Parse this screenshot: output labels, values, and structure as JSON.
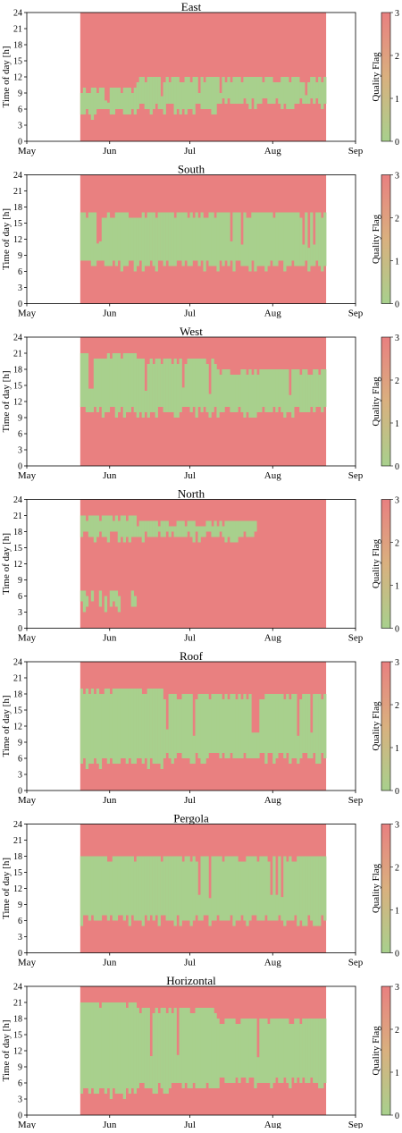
{
  "shared": {
    "ylabel": "Time of day [h]",
    "y_ticks": [
      "0",
      "3",
      "6",
      "9",
      "12",
      "15",
      "18",
      "21",
      "24"
    ],
    "x_ticks": [
      "May",
      "Jun",
      "Jul",
      "Aug",
      "Sep"
    ],
    "colorbar_label": "Quality Flag",
    "colorbar_ticks": [
      "0",
      "1",
      "2",
      "3"
    ],
    "colors": {
      "flag_good": "#a8d08d",
      "flag_bad": "#e98080"
    }
  },
  "chart_data": [
    {
      "type": "heatmap",
      "title": "East",
      "ylabel": "Time of day [h]",
      "xlim": [
        "2021-05-01",
        "2021-09-01"
      ],
      "ylim": [
        0,
        24
      ],
      "data_range": [
        "2021-05-21",
        "2021-08-20"
      ],
      "good_window": [
        {
          "from": "2021-05-21",
          "to": "2021-06-10",
          "hours": [
            5,
            10
          ]
        },
        {
          "from": "2021-06-11",
          "to": "2021-07-10",
          "hours": [
            6,
            12
          ]
        },
        {
          "from": "2021-07-11",
          "to": "2021-08-20",
          "hours": [
            7,
            12
          ]
        }
      ],
      "legend": "colorbar"
    },
    {
      "type": "heatmap",
      "title": "South",
      "ylabel": "Time of day [h]",
      "xlim": [
        "2021-05-01",
        "2021-09-01"
      ],
      "ylim": [
        0,
        24
      ],
      "data_range": [
        "2021-05-21",
        "2021-08-20"
      ],
      "good_window": [
        {
          "from": "2021-05-21",
          "to": "2021-08-20",
          "hours": [
            7,
            17
          ]
        }
      ],
      "legend": "colorbar"
    },
    {
      "type": "heatmap",
      "title": "West",
      "ylabel": "Time of day [h]",
      "xlim": [
        "2021-05-01",
        "2021-09-01"
      ],
      "ylim": [
        0,
        24
      ],
      "data_range": [
        "2021-05-21",
        "2021-08-20"
      ],
      "good_window": [
        {
          "from": "2021-05-21",
          "to": "2021-06-10",
          "hours": [
            10,
            21
          ]
        },
        {
          "from": "2021-06-11",
          "to": "2021-07-10",
          "hours": [
            10,
            20
          ]
        },
        {
          "from": "2021-07-11",
          "to": "2021-08-20",
          "hours": [
            10,
            18
          ]
        }
      ],
      "legend": "colorbar"
    },
    {
      "type": "heatmap",
      "title": "North",
      "ylabel": "Time of day [h]",
      "xlim": [
        "2021-05-01",
        "2021-09-01"
      ],
      "ylim": [
        0,
        24
      ],
      "data_range": [
        "2021-05-21",
        "2021-08-20"
      ],
      "good_window": [
        {
          "from": "2021-05-21",
          "to": "2021-06-10",
          "hours": [
            4,
            7
          ]
        },
        {
          "from": "2021-05-21",
          "to": "2021-06-10",
          "hours": [
            17,
            21
          ]
        },
        {
          "from": "2021-06-11",
          "to": "2021-07-25",
          "hours": [
            17,
            20
          ]
        }
      ],
      "legend": "colorbar"
    },
    {
      "type": "heatmap",
      "title": "Roof",
      "ylabel": "Time of day [h]",
      "xlim": [
        "2021-05-01",
        "2021-09-01"
      ],
      "ylim": [
        0,
        24
      ],
      "data_range": [
        "2021-05-21",
        "2021-08-20"
      ],
      "good_window": [
        {
          "from": "2021-05-21",
          "to": "2021-06-20",
          "hours": [
            5,
            19
          ]
        },
        {
          "from": "2021-06-21",
          "to": "2021-08-20",
          "hours": [
            6,
            18
          ]
        }
      ],
      "legend": "colorbar"
    },
    {
      "type": "heatmap",
      "title": "Pergola",
      "ylabel": "Time of day [h]",
      "xlim": [
        "2021-05-01",
        "2021-09-01"
      ],
      "ylim": [
        0,
        24
      ],
      "data_range": [
        "2021-05-21",
        "2021-08-20"
      ],
      "good_window": [
        {
          "from": "2021-05-21",
          "to": "2021-08-20",
          "hours": [
            6,
            18
          ]
        }
      ],
      "legend": "colorbar"
    },
    {
      "type": "heatmap",
      "title": "Horizontal",
      "ylabel": "Time of day [h]",
      "xlim": [
        "2021-05-01",
        "2021-09-01"
      ],
      "ylim": [
        0,
        24
      ],
      "data_range": [
        "2021-05-21",
        "2021-08-20"
      ],
      "good_window": [
        {
          "from": "2021-05-21",
          "to": "2021-06-10",
          "hours": [
            4,
            21
          ]
        },
        {
          "from": "2021-06-11",
          "to": "2021-07-10",
          "hours": [
            5,
            20
          ]
        },
        {
          "from": "2021-07-11",
          "to": "2021-08-20",
          "hours": [
            6,
            18
          ]
        }
      ],
      "legend": "colorbar"
    }
  ]
}
